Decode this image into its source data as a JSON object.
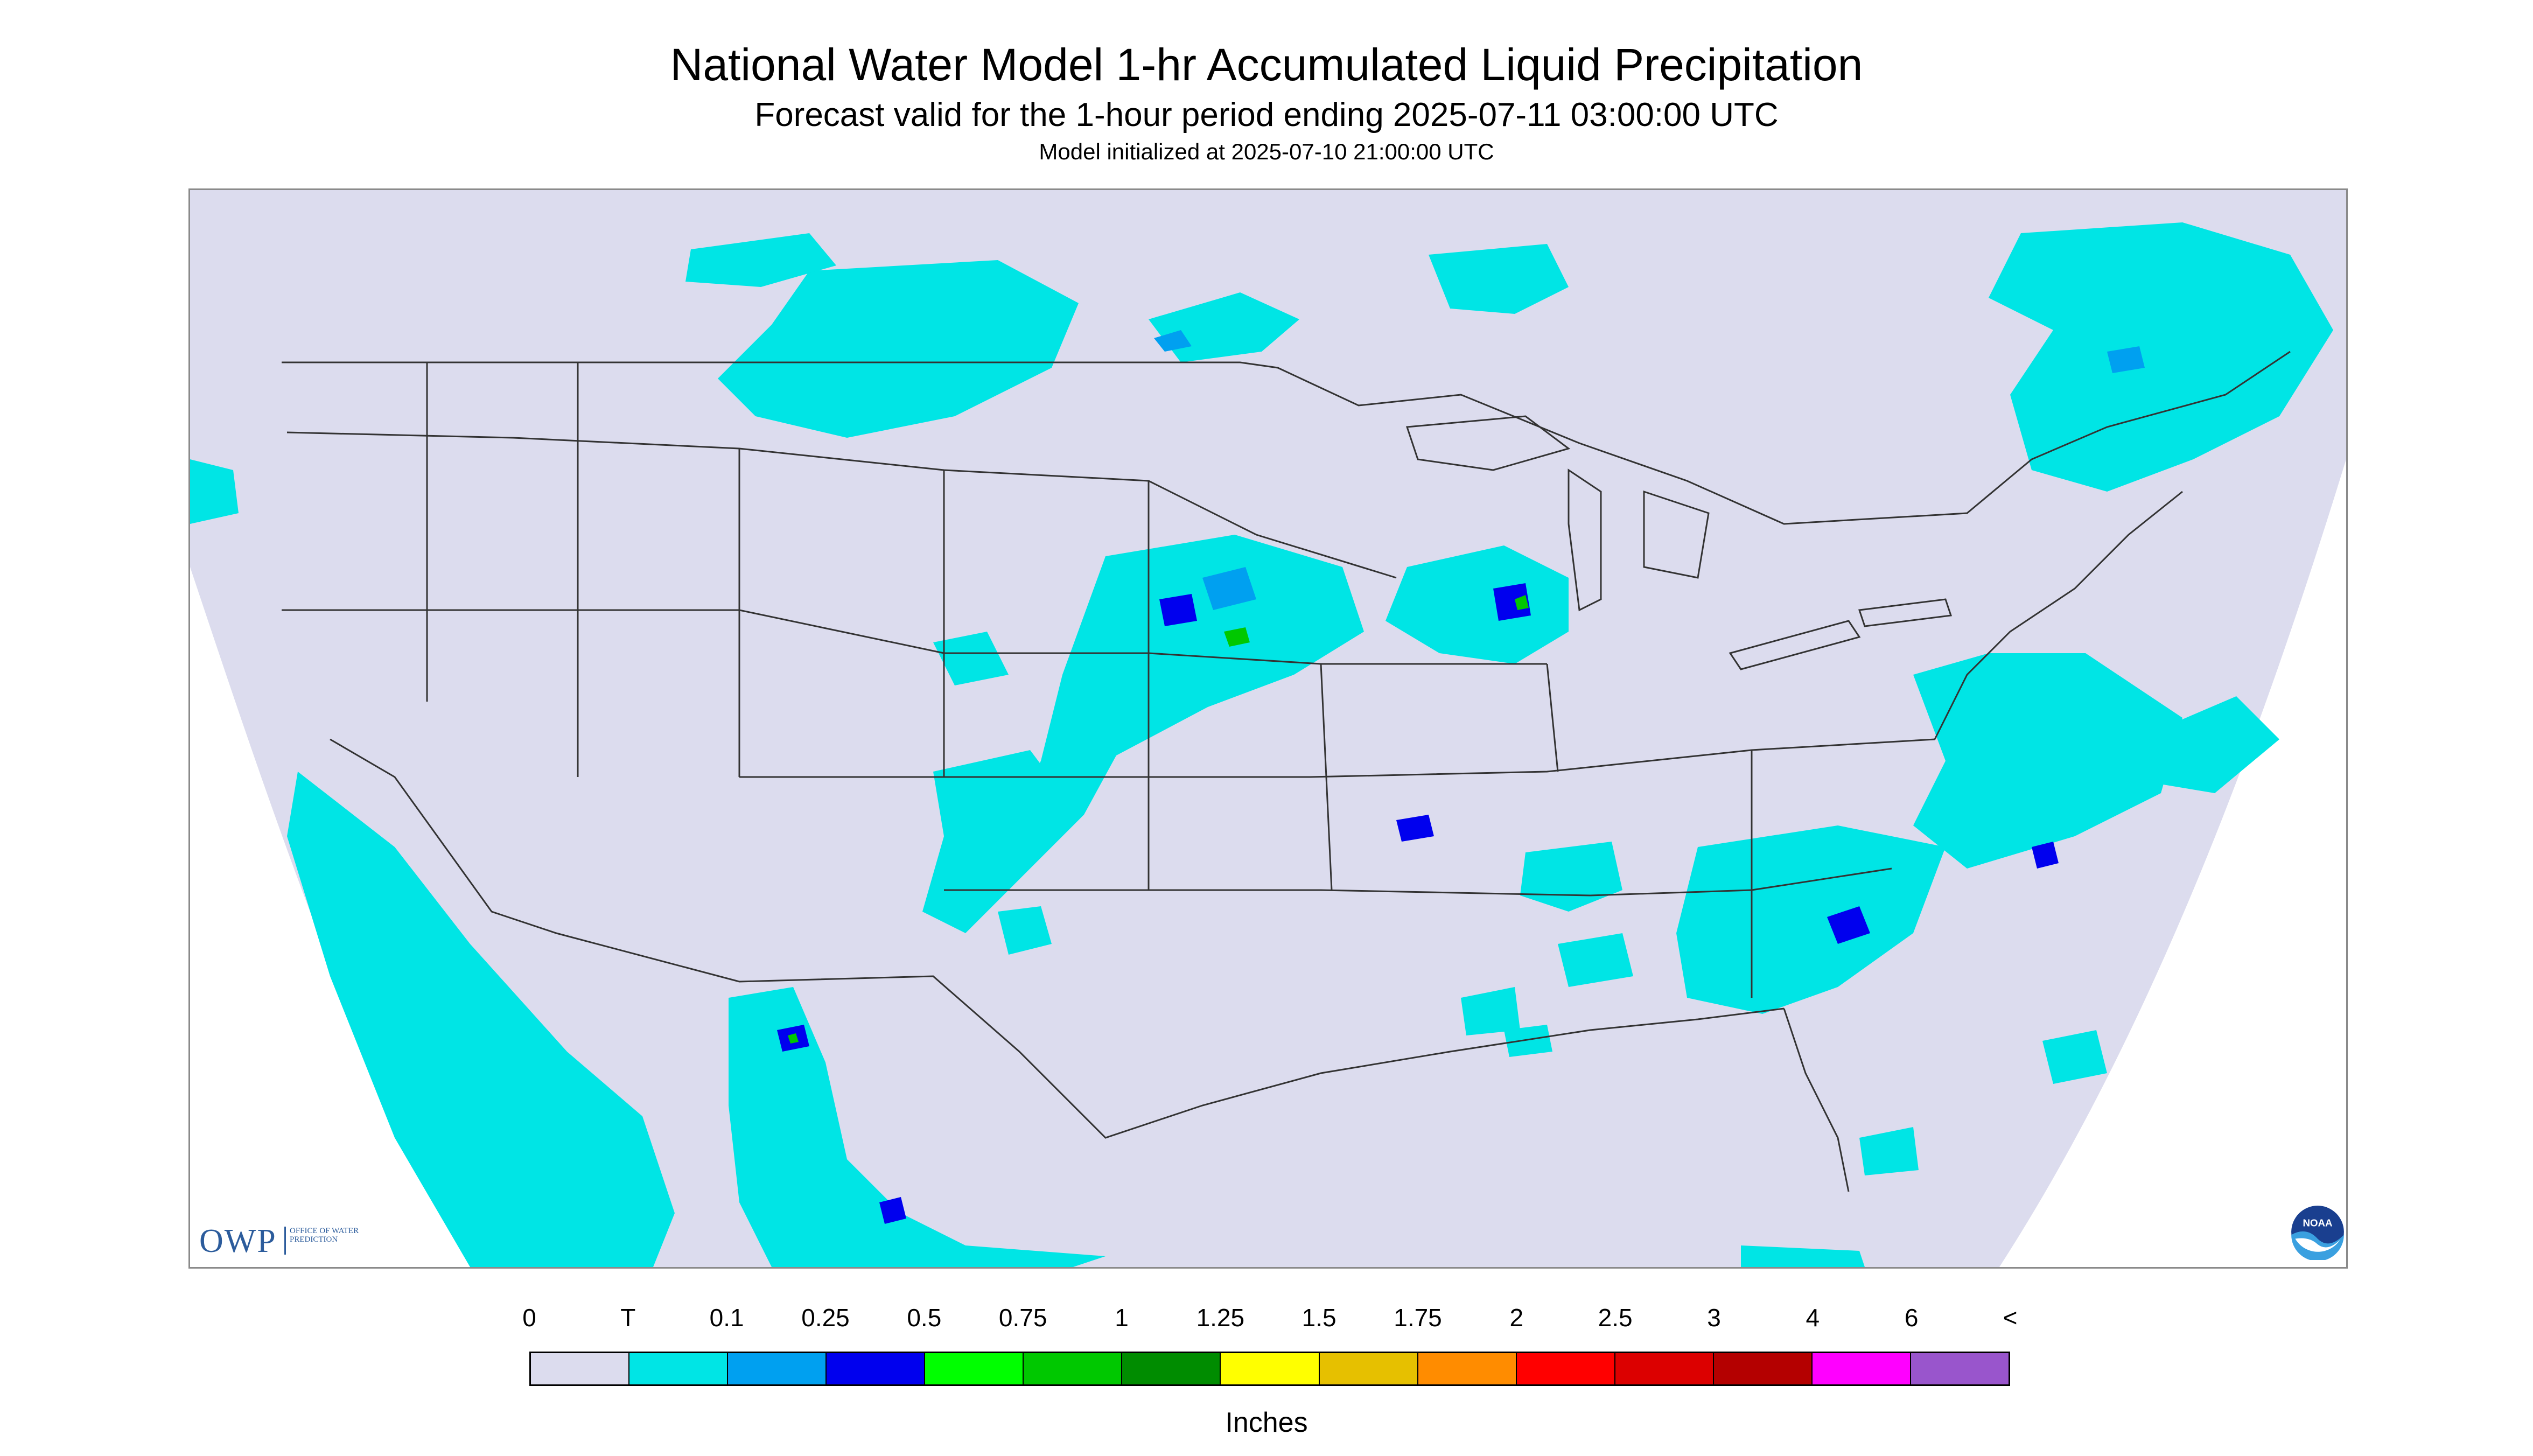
{
  "title": "National Water Model 1-hr Accumulated Liquid Precipitation",
  "subtitle": "Forecast valid for the 1-hour period ending 2025-07-11 03:00:00 UTC",
  "init_line": "Model initialized at 2025-07-10 21:00:00 UTC",
  "logos": {
    "owp_mark": "OWP",
    "owp_text": "OFFICE OF WATER PREDICTION",
    "noaa_text": "NOAA"
  },
  "colors": {
    "background": "#dcdcee",
    "no_data": "#ffffff",
    "trace": "#00e5e5",
    "boundaries": "#333333"
  },
  "legend": {
    "unit": "Inches",
    "labels": [
      "0",
      "T",
      "0.1",
      "0.25",
      "0.5",
      "0.75",
      "1",
      "1.25",
      "1.5",
      "1.75",
      "2",
      "2.5",
      "3",
      "4",
      "6",
      "<"
    ],
    "colors": [
      "#dcdcee",
      "#00e5e5",
      "#00a0f0",
      "#0000ee",
      "#00ff00",
      "#00c800",
      "#008c00",
      "#ffff00",
      "#e6c000",
      "#ff8c00",
      "#ff0000",
      "#dc0000",
      "#b40000",
      "#ff00ff",
      "#9955cc"
    ]
  },
  "precip_regions": [
    {
      "name": "northern-plains-montana",
      "level": "T"
    },
    {
      "name": "southern-canada-prairies",
      "level": "T"
    },
    {
      "name": "saskatchewan-cell",
      "level": "0.25"
    },
    {
      "name": "central-plains-nebraska-kansas",
      "level": "0.5"
    },
    {
      "name": "colorado-new-mexico-band",
      "level": "T"
    },
    {
      "name": "iowa-illinois-cluster",
      "level": "0.5"
    },
    {
      "name": "northeast-new-england",
      "level": "0.25"
    },
    {
      "name": "mid-atlantic-coast",
      "level": "0.25"
    },
    {
      "name": "carolinas-georgia",
      "level": "0.5"
    },
    {
      "name": "southeast-gulf-coast",
      "level": "T"
    },
    {
      "name": "pacific-baja-offshore",
      "level": "T"
    },
    {
      "name": "northern-mexico-sierra",
      "level": "0.5"
    },
    {
      "name": "west-atlantic-offshore",
      "level": "T"
    }
  ]
}
